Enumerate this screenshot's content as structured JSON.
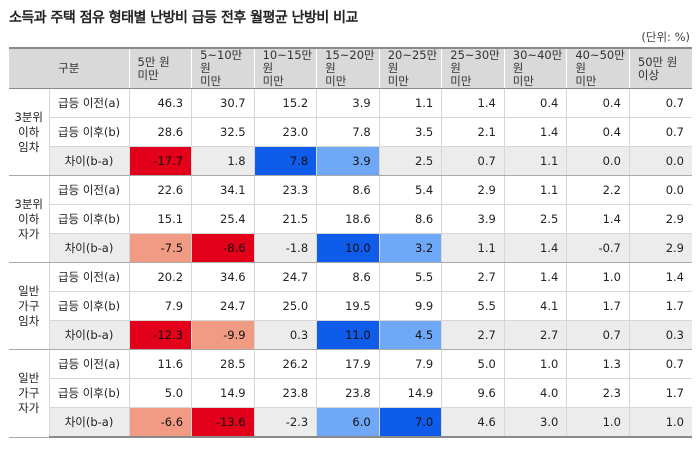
{
  "title": "소득과 주택 점유 형태별 난방비 급등 전후 월평균 난방비 비교",
  "unit": "(단위: %)",
  "header": {
    "gubun": "구분",
    "columns": [
      {
        "l1": "5만 원",
        "l2": "미만"
      },
      {
        "l1": "5~10만 원",
        "l2": "미만"
      },
      {
        "l1": "10~15만 원",
        "l2": "미만"
      },
      {
        "l1": "15~20만 원",
        "l2": "미만"
      },
      {
        "l1": "20~25만 원",
        "l2": "미만"
      },
      {
        "l1": "25~30만 원",
        "l2": "미만"
      },
      {
        "l1": "30~40만 원",
        "l2": "미만"
      },
      {
        "l1": "40~50만 원",
        "l2": "미만"
      },
      {
        "l1": "50만 원",
        "l2": "이상"
      }
    ]
  },
  "groups": [
    {
      "label": [
        "3분위",
        "이하",
        "임차"
      ],
      "rows": [
        {
          "label": "급등 이전(a)",
          "values": [
            "46.3",
            "30.7",
            "15.2",
            "3.9",
            "1.1",
            "1.4",
            "0.4",
            "0.4",
            "0.7"
          ]
        },
        {
          "label": "급등 이후(b)",
          "values": [
            "28.6",
            "32.5",
            "23.0",
            "7.8",
            "3.5",
            "2.1",
            "1.4",
            "0.4",
            "0.7"
          ]
        },
        {
          "label": "차이(b-a)",
          "values": [
            "-17.7",
            "1.8",
            "7.8",
            "3.9",
            "2.5",
            "0.7",
            "1.1",
            "0.0",
            "0.0"
          ],
          "highlights": [
            "red",
            "",
            "blue",
            "lightblue",
            "",
            "",
            "",
            "",
            ""
          ]
        }
      ]
    },
    {
      "label": [
        "3분위",
        "이하",
        "자가"
      ],
      "rows": [
        {
          "label": "급등 이전(a)",
          "values": [
            "22.6",
            "34.1",
            "23.3",
            "8.6",
            "5.4",
            "2.9",
            "1.1",
            "2.2",
            "0.0"
          ]
        },
        {
          "label": "급등 이후(b)",
          "values": [
            "15.1",
            "25.4",
            "21.5",
            "18.6",
            "8.6",
            "3.9",
            "2.5",
            "1.4",
            "2.9"
          ]
        },
        {
          "label": "차이(b-a)",
          "values": [
            "-7.5",
            "-8.6",
            "-1.8",
            "10.0",
            "3.2",
            "1.1",
            "1.4",
            "-0.7",
            "2.9"
          ],
          "highlights": [
            "pink",
            "red",
            "",
            "blue",
            "lightblue",
            "",
            "",
            "",
            ""
          ]
        }
      ]
    },
    {
      "label": [
        "일반",
        "가구",
        "임차"
      ],
      "rows": [
        {
          "label": "급등 이전(a)",
          "values": [
            "20.2",
            "34.6",
            "24.7",
            "8.6",
            "5.5",
            "2.7",
            "1.4",
            "1.0",
            "1.4"
          ]
        },
        {
          "label": "급등 이후(b)",
          "values": [
            "7.9",
            "24.7",
            "25.0",
            "19.5",
            "9.9",
            "5.5",
            "4.1",
            "1.7",
            "1.7"
          ]
        },
        {
          "label": "차이(b-a)",
          "values": [
            "-12.3",
            "-9.9",
            "0.3",
            "11.0",
            "4.5",
            "2.7",
            "2.7",
            "0.7",
            "0.3"
          ],
          "highlights": [
            "red",
            "pink",
            "",
            "blue",
            "lightblue",
            "",
            "",
            "",
            ""
          ]
        }
      ]
    },
    {
      "label": [
        "일반",
        "가구",
        "자가"
      ],
      "rows": [
        {
          "label": "급등 이전(a)",
          "values": [
            "11.6",
            "28.5",
            "26.2",
            "17.9",
            "7.9",
            "5.0",
            "1.0",
            "1.3",
            "0.7"
          ]
        },
        {
          "label": "급등 이후(b)",
          "values": [
            "5.0",
            "14.9",
            "23.8",
            "23.8",
            "14.9",
            "9.6",
            "4.0",
            "2.3",
            "1.7"
          ]
        },
        {
          "label": "차이(b-a)",
          "values": [
            "-6.6",
            "-13.6",
            "-2.3",
            "6.0",
            "7.0",
            "4.6",
            "3.0",
            "1.0",
            "1.0"
          ],
          "highlights": [
            "pink",
            "red",
            "",
            "lightblue",
            "blue",
            "",
            "",
            "",
            ""
          ]
        }
      ]
    }
  ]
}
